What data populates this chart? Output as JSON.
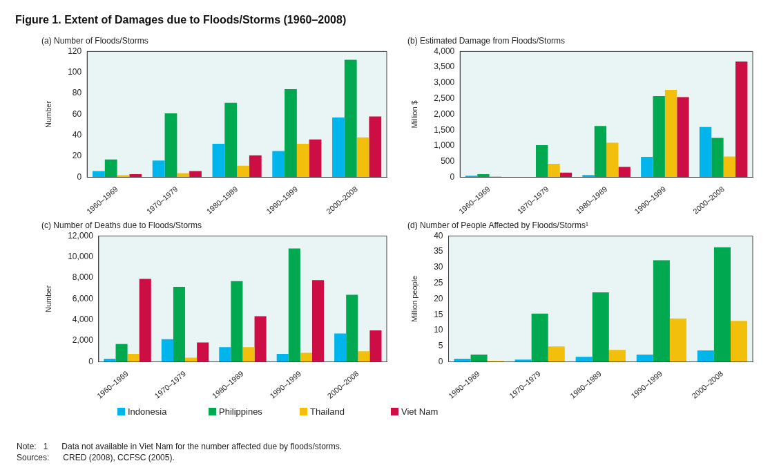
{
  "chart_data": [
    {
      "type": "bar",
      "title": "Figure 1.  Extent of Damages due to Floods/Storms (1960–2008)",
      "subtitle": "(a) Number of Floods/Storms",
      "ylabel": "Number",
      "categories": [
        "1960–1969",
        "1970–1979",
        "1980–1989",
        "1990–1999",
        "2000–2008"
      ],
      "ylim": [
        0,
        120
      ],
      "yticks": [
        0,
        20,
        40,
        60,
        80,
        100,
        120
      ],
      "legend": "bottom",
      "series": [
        {
          "name": "Indonesia",
          "color": "#00b5ec",
          "values": [
            6,
            16,
            32,
            25,
            57
          ]
        },
        {
          "name": "Philippines",
          "color": "#00a84f",
          "values": [
            17,
            61,
            71,
            84,
            112
          ]
        },
        {
          "name": "Thailand",
          "color": "#f2bf0d",
          "values": [
            2,
            4,
            11,
            32,
            38
          ]
        },
        {
          "name": "Viet Nam",
          "color": "#cc0e45",
          "values": [
            3,
            6,
            21,
            36,
            58
          ]
        }
      ]
    },
    {
      "type": "bar",
      "title": "(b) Estimated Damage from Floods/Storms",
      "ylabel": "Million $",
      "categories": [
        "1960–1969",
        "1970–1979",
        "1980–1989",
        "1990–1999",
        "2000–2008"
      ],
      "ylim": [
        0,
        4000
      ],
      "yticks": [
        0,
        500,
        {
          "value": 1000,
          "label": "1,000"
        },
        {
          "value": 1500,
          "label": "1,500"
        },
        {
          "value": 2000,
          "label": "2,000"
        },
        {
          "value": 2500,
          "label": "2,500"
        },
        {
          "value": 3000,
          "label": "3,000"
        },
        {
          "value": 3500,
          "label": "3,500"
        },
        {
          "value": 4000,
          "label": "4,000"
        }
      ],
      "series": [
        {
          "color": "#00b5ec",
          "values": [
            50,
            0,
            70,
            650,
            1600
          ]
        },
        {
          "color": "#00a84f",
          "values": [
            100,
            1020,
            1630,
            2580,
            1250
          ]
        },
        {
          "color": "#f2bf0d",
          "values": [
            30,
            430,
            1100,
            2780,
            660
          ]
        },
        {
          "color": "#cc0e45",
          "values": [
            0,
            150,
            330,
            2550,
            3680
          ]
        }
      ]
    },
    {
      "type": "bar",
      "title": "(c) Number of Deaths due to Floods/Storms",
      "ylabel": "Number",
      "categories": [
        "1960–1969",
        "1970–1979",
        "1980–1989",
        "1990–1999",
        "2000–2008"
      ],
      "ylim": [
        0,
        12000
      ],
      "yticks": [
        0,
        {
          "value": 2000,
          "label": "2,000"
        },
        {
          "value": 4000,
          "label": "4,000"
        },
        {
          "value": 6000,
          "label": "6,000"
        },
        {
          "value": 8000,
          "label": "8,000"
        },
        {
          "value": 10000,
          "label": "10,000"
        },
        {
          "value": 12000,
          "label": "12,000"
        }
      ],
      "series": [
        {
          "color": "#00b5ec",
          "values": [
            300,
            2150,
            1400,
            750,
            2700
          ]
        },
        {
          "color": "#00a84f",
          "values": [
            1700,
            7150,
            7700,
            10800,
            6400
          ]
        },
        {
          "color": "#f2bf0d",
          "values": [
            750,
            400,
            1400,
            850,
            1000
          ]
        },
        {
          "color": "#cc0e45",
          "values": [
            7900,
            1850,
            4350,
            7800,
            3000
          ]
        }
      ]
    },
    {
      "type": "bar",
      "title": "(d) Number of People Affected by Floods/Storms¹",
      "ylabel": "Million people",
      "categories": [
        "1960–1969",
        "1970–1979",
        "1980–1989",
        "1990–1999",
        "2000–2008"
      ],
      "ylim": [
        0,
        40
      ],
      "yticks": [
        0,
        5,
        10,
        15,
        20,
        25,
        30,
        35,
        40
      ],
      "annotations": [
        "Note:   1      Data not available in Viet Nam for the number affected due by floods/storms.",
        "Sources:      CRED (2008), CCFSC (2005)."
      ],
      "series": [
        {
          "color": "#00b5ec",
          "values": [
            1,
            0.7,
            1.6,
            2.3,
            3.6
          ]
        },
        {
          "color": "#00a84f",
          "values": [
            2.3,
            15.3,
            22.1,
            32.3,
            36.4
          ]
        },
        {
          "color": "#f2bf0d",
          "values": [
            0.3,
            4.9,
            3.8,
            13.8,
            13.0
          ]
        }
      ]
    }
  ]
}
